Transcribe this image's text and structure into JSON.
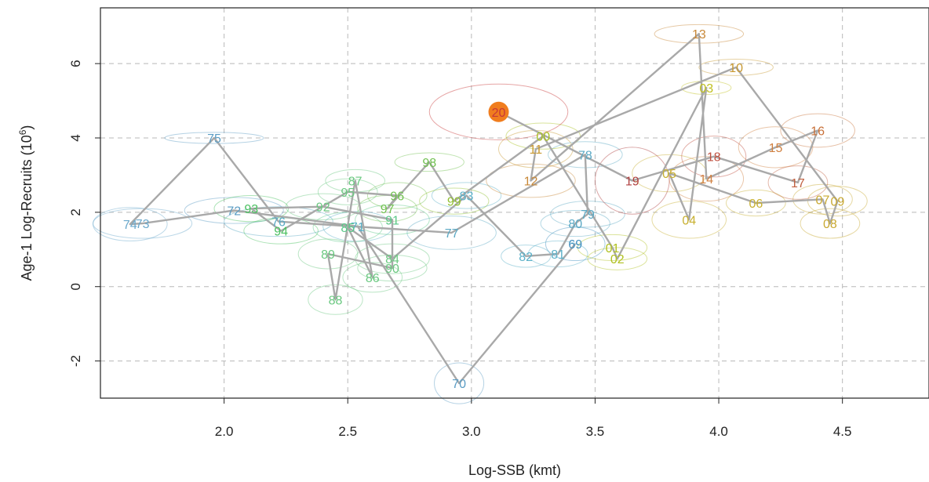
{
  "chart_data": {
    "type": "scatter",
    "xlabel": "Log-SSB (kmt)",
    "ylabel": "Age-1 Log-Recruits (10",
    "ylabel_sup": "6",
    "ylabel_close": ")",
    "xlim": [
      1.5,
      4.85
    ],
    "ylim": [
      -3.0,
      7.5
    ],
    "xticks": [
      2.0,
      2.5,
      3.0,
      3.5,
      4.0,
      4.5
    ],
    "xtick_labels": [
      "2.0",
      "2.5",
      "3.0",
      "3.5",
      "4.0",
      "4.5"
    ],
    "yticks": [
      -2,
      0,
      2,
      4,
      6
    ],
    "ytick_labels": [
      "-2",
      "0",
      "2",
      "4",
      "6"
    ],
    "grid": "dashed",
    "line_color": "#a9a9a9",
    "highlight": {
      "label": "20",
      "color": "#f07d1e"
    },
    "points": [
      {
        "label": "69",
        "x": 3.42,
        "y": 1.15,
        "color": "#3f8fbf",
        "ew": 0.12,
        "eh": 0.45
      },
      {
        "label": "70",
        "x": 2.95,
        "y": -2.6,
        "color": "#5a9cc4",
        "ew": 0.1,
        "eh": 0.55
      },
      {
        "label": "71",
        "x": 2.54,
        "y": 1.62,
        "color": "#5ab0c8",
        "ew": 0.14,
        "eh": 0.4
      },
      {
        "label": "72",
        "x": 2.04,
        "y": 2.05,
        "color": "#5a9cc4",
        "ew": 0.2,
        "eh": 0.35
      },
      {
        "label": "73",
        "x": 1.67,
        "y": 1.7,
        "color": "#6aa8cc",
        "ew": 0.2,
        "eh": 0.4
      },
      {
        "label": "74",
        "x": 1.62,
        "y": 1.68,
        "color": "#6aa8cc",
        "ew": 0.15,
        "eh": 0.45
      },
      {
        "label": "75",
        "x": 1.96,
        "y": 4.0,
        "color": "#5a9cc4",
        "ew": 0.2,
        "eh": 0.15
      },
      {
        "label": "76",
        "x": 2.22,
        "y": 1.75,
        "color": "#5aa8c4",
        "ew": 0.22,
        "eh": 0.4
      },
      {
        "label": "77",
        "x": 2.92,
        "y": 1.45,
        "color": "#5aa8c4",
        "ew": 0.18,
        "eh": 0.45
      },
      {
        "label": "78",
        "x": 3.46,
        "y": 3.55,
        "color": "#5aa8c4",
        "ew": 0.15,
        "eh": 0.35
      },
      {
        "label": "79",
        "x": 3.47,
        "y": 1.95,
        "color": "#5aa8c4",
        "ew": 0.15,
        "eh": 0.35
      },
      {
        "label": "80",
        "x": 3.42,
        "y": 1.7,
        "color": "#5aa8c4",
        "ew": 0.14,
        "eh": 0.35
      },
      {
        "label": "81",
        "x": 3.35,
        "y": 0.88,
        "color": "#5ab0c8",
        "ew": 0.12,
        "eh": 0.35
      },
      {
        "label": "82",
        "x": 3.22,
        "y": 0.82,
        "color": "#5ab0c8",
        "ew": 0.1,
        "eh": 0.3
      },
      {
        "label": "83",
        "x": 2.98,
        "y": 2.45,
        "color": "#5ab0c8",
        "ew": 0.14,
        "eh": 0.35
      },
      {
        "label": "84",
        "x": 2.68,
        "y": 0.75,
        "color": "#6ac880",
        "ew": 0.15,
        "eh": 0.4
      },
      {
        "label": "85",
        "x": 2.5,
        "y": 1.6,
        "color": "#5ac888",
        "ew": 0.14,
        "eh": 0.4
      },
      {
        "label": "86",
        "x": 2.6,
        "y": 0.25,
        "color": "#6ac880",
        "ew": 0.12,
        "eh": 0.4
      },
      {
        "label": "87",
        "x": 2.53,
        "y": 2.85,
        "color": "#6ac880",
        "ew": 0.12,
        "eh": 0.3
      },
      {
        "label": "88",
        "x": 2.45,
        "y": -0.35,
        "color": "#6ac880",
        "ew": 0.11,
        "eh": 0.4
      },
      {
        "label": "89",
        "x": 2.42,
        "y": 0.88,
        "color": "#6ac880",
        "ew": 0.12,
        "eh": 0.4
      },
      {
        "label": "90",
        "x": 2.68,
        "y": 0.5,
        "color": "#6ac880",
        "ew": 0.14,
        "eh": 0.35
      },
      {
        "label": "91",
        "x": 2.68,
        "y": 1.8,
        "color": "#5ac888",
        "ew": 0.15,
        "eh": 0.4
      },
      {
        "label": "92",
        "x": 2.4,
        "y": 2.15,
        "color": "#6ac880",
        "ew": 0.15,
        "eh": 0.35
      },
      {
        "label": "93",
        "x": 2.11,
        "y": 2.1,
        "color": "#4ac060",
        "ew": 0.15,
        "eh": 0.35
      },
      {
        "label": "94",
        "x": 2.23,
        "y": 1.5,
        "color": "#4ac060",
        "ew": 0.15,
        "eh": 0.35
      },
      {
        "label": "95",
        "x": 2.5,
        "y": 2.55,
        "color": "#6ac880",
        "ew": 0.12,
        "eh": 0.35
      },
      {
        "label": "96",
        "x": 2.7,
        "y": 2.45,
        "color": "#70c050",
        "ew": 0.12,
        "eh": 0.35
      },
      {
        "label": "97",
        "x": 2.66,
        "y": 2.1,
        "color": "#70c050",
        "ew": 0.12,
        "eh": 0.35
      },
      {
        "label": "98",
        "x": 2.83,
        "y": 3.35,
        "color": "#70c050",
        "ew": 0.14,
        "eh": 0.25
      },
      {
        "label": "99",
        "x": 2.93,
        "y": 2.3,
        "color": "#90c030",
        "ew": 0.14,
        "eh": 0.35
      },
      {
        "label": "00",
        "x": 3.29,
        "y": 4.05,
        "color": "#a8c020",
        "ew": 0.15,
        "eh": 0.35
      },
      {
        "label": "01",
        "x": 3.57,
        "y": 1.05,
        "color": "#b0c020",
        "ew": 0.14,
        "eh": 0.35
      },
      {
        "label": "02",
        "x": 3.59,
        "y": 0.75,
        "color": "#b0c020",
        "ew": 0.12,
        "eh": 0.3
      },
      {
        "label": "03",
        "x": 3.95,
        "y": 5.35,
        "color": "#c0c020",
        "ew": 0.1,
        "eh": 0.18
      },
      {
        "label": "04",
        "x": 3.88,
        "y": 1.8,
        "color": "#c8b030",
        "ew": 0.15,
        "eh": 0.5
      },
      {
        "label": "05",
        "x": 3.8,
        "y": 3.05,
        "color": "#c8b030",
        "ew": 0.15,
        "eh": 0.5
      },
      {
        "label": "06",
        "x": 4.15,
        "y": 2.25,
        "color": "#c8b030",
        "ew": 0.12,
        "eh": 0.35
      },
      {
        "label": "07",
        "x": 4.42,
        "y": 2.35,
        "color": "#c8a830",
        "ew": 0.12,
        "eh": 0.4
      },
      {
        "label": "08",
        "x": 4.45,
        "y": 1.7,
        "color": "#c8a830",
        "ew": 0.12,
        "eh": 0.4
      },
      {
        "label": "09",
        "x": 4.48,
        "y": 2.3,
        "color": "#c8a830",
        "ew": 0.12,
        "eh": 0.4
      },
      {
        "label": "10",
        "x": 4.07,
        "y": 5.9,
        "color": "#c89830",
        "ew": 0.15,
        "eh": 0.22
      },
      {
        "label": "11",
        "x": 3.26,
        "y": 3.7,
        "color": "#c89830",
        "ew": 0.15,
        "eh": 0.5
      },
      {
        "label": "12",
        "x": 3.24,
        "y": 2.85,
        "color": "#c88838",
        "ew": 0.18,
        "eh": 0.45
      },
      {
        "label": "13",
        "x": 3.92,
        "y": 6.8,
        "color": "#c88838",
        "ew": 0.18,
        "eh": 0.25
      },
      {
        "label": "14",
        "x": 3.95,
        "y": 2.9,
        "color": "#d08040",
        "ew": 0.15,
        "eh": 0.6
      },
      {
        "label": "15",
        "x": 4.23,
        "y": 3.75,
        "color": "#d08040",
        "ew": 0.15,
        "eh": 0.55
      },
      {
        "label": "16",
        "x": 4.4,
        "y": 4.2,
        "color": "#c87038",
        "ew": 0.15,
        "eh": 0.45
      },
      {
        "label": "17",
        "x": 4.32,
        "y": 2.8,
        "color": "#c06040",
        "ew": 0.12,
        "eh": 0.45
      },
      {
        "label": "18",
        "x": 3.98,
        "y": 3.5,
        "color": "#c05040",
        "ew": 0.13,
        "eh": 0.55
      },
      {
        "label": "19",
        "x": 3.65,
        "y": 2.85,
        "color": "#b04040",
        "ew": 0.15,
        "eh": 0.9
      },
      {
        "label": "20",
        "x": 3.11,
        "y": 4.7,
        "color": "#c83838",
        "ew": 0.28,
        "eh": 0.75
      }
    ],
    "path": [
      "69",
      "70",
      "71",
      "72",
      "73",
      "74",
      "75",
      "76",
      "77",
      "78",
      "79",
      "80",
      "81",
      "82",
      "83",
      "84",
      "85",
      "86",
      "87",
      "88",
      "89",
      "90",
      "91",
      "92",
      "93",
      "94",
      "95",
      "96",
      "97",
      "98",
      "99",
      "00",
      "01",
      "02",
      "03",
      "04",
      "05",
      "06",
      "07",
      "08",
      "09",
      "10",
      "11",
      "12",
      "13",
      "14",
      "15",
      "16",
      "17",
      "18",
      "19",
      "20"
    ]
  }
}
